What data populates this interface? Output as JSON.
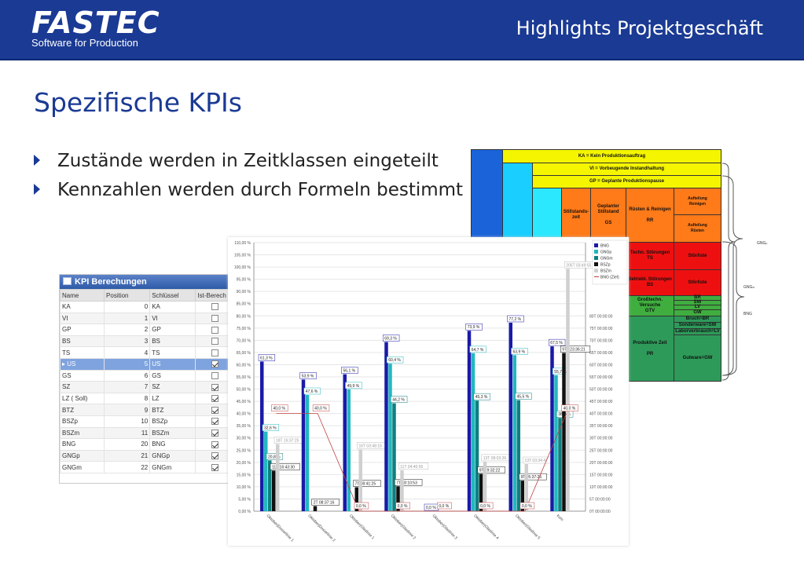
{
  "header": {
    "logo_main": "FASTEC",
    "logo_sub": "Software for Production",
    "title": "Highlights Projektgeschäft",
    "background": "#1a3a94"
  },
  "page_title": "Spezifische KPIs",
  "bullets": [
    "Zustände werden in Zeitklassen eingeteilt",
    "Kennzahlen werden durch Formeln bestimmt"
  ],
  "time_classes": {
    "ka": "KA = Kein Produktionsauftrag",
    "vi": "VI = Vorbeugende Instandhaltung",
    "gp": "GP = Geplante Produktionspause",
    "stillstandszeit": "Stillstands-\nzeit",
    "gs": "Geplanter\nStillstand\n\nGS",
    "rr": "Rüsten & Reinigen\n\nRR",
    "aufteilung1": "Aufteilung\nReinigen",
    "aufteilung2": "Aufteilung\nRüsten",
    "ts": "Techn. Störungen\nTS",
    "stoerliste1": "Störliste",
    "bs": "Betriebl. Störungen\nBS",
    "stoerliste2": "Störliste",
    "gtv": "Großtechn.\nVersuche\nGTV",
    "br": "BR",
    "sw": "SW",
    "lv": "LV",
    "gw": "GW",
    "pr": "Produktive Zeit\n\nPR",
    "bruch": "Bruch=BR",
    "sonderware": "Sonderware=SW",
    "laborverbrauch": "Laborverbrauch=LV",
    "gutware": "Gutware=GW",
    "brace1": "GNGₚ",
    "brace2": "GNGₘ",
    "brace3": "BNG"
  },
  "kpi_panel": {
    "title": "KPI Berechungen",
    "columns": [
      "Name",
      "Position",
      "Schlüssel",
      "Ist-Berech"
    ],
    "rows": [
      [
        "KA",
        "0",
        "KA",
        false
      ],
      [
        "VI",
        "1",
        "VI",
        false
      ],
      [
        "GP",
        "2",
        "GP",
        false
      ],
      [
        "BS",
        "3",
        "BS",
        false
      ],
      [
        "TS",
        "4",
        "TS",
        false
      ],
      [
        "US",
        "5",
        "US",
        true
      ],
      [
        "GS",
        "6",
        "GS",
        false
      ],
      [
        "SZ",
        "7",
        "SZ",
        true
      ],
      [
        "LZ ( Soll)",
        "8",
        "LZ",
        true
      ],
      [
        "BTZ",
        "9",
        "BTZ",
        true
      ],
      [
        "BSZp",
        "10",
        "BSZp",
        true
      ],
      [
        "BSZm",
        "11",
        "BSZm",
        true
      ],
      [
        "BNG",
        "20",
        "BNG",
        true
      ],
      [
        "GNGp",
        "21",
        "GNGp",
        true
      ],
      [
        "GNGm",
        "22",
        "GNGm",
        true
      ]
    ],
    "selected_row": 5
  },
  "chart_data": {
    "type": "bar",
    "categories": [
      "Oktober|Dosierlinie 1",
      "Oktober|Dosierlinie 2",
      "Oktober|Glaslinie 1",
      "Oktober|Glaslinie 2",
      "Oktober|Glaslinie 3",
      "Oktober|Glaslinie 4",
      "Oktober|Glaslinie 5",
      "kum"
    ],
    "y_ticks": [
      "0,00 %",
      "5,00 %",
      "10,00 %",
      "15,00 %",
      "20,00 %",
      "25,00 %",
      "30,00 %",
      "35,00 %",
      "40,00 %",
      "45,00 %",
      "50,00 %",
      "55,00 %",
      "60,00 %",
      "65,00 %",
      "70,00 %",
      "75,00 %",
      "80,00 %",
      "85,00 %",
      "90,00 %",
      "95,00 %",
      "100,00 %",
      "105,00 %",
      "110,00 %"
    ],
    "y2_ticks": [
      "0T 00:00:00",
      "5T 00:00:00",
      "10T 00:00:00",
      "15T 00:00:00",
      "20T 00:00:00",
      "25T 00:00:00",
      "30T 00:00:00",
      "35T 00:00:00",
      "40T 00:00:00",
      "45T 00:00:00",
      "50T 00:00:00",
      "55T 00:00:00",
      "60T 00:00:00",
      "65T 00:00:00",
      "70T 00:00:00",
      "75T 00:00:00",
      "80T 00:00:00"
    ],
    "ylim": [
      0,
      110
    ],
    "series": [
      {
        "name": "BNG",
        "color": "#1a1aa8",
        "values": [
          61.3,
          53.9,
          56.1,
          69.3,
          0,
          73.9,
          77.2,
          67.5
        ],
        "labels": [
          "61,3 %",
          "53,9 %",
          "56,1 %",
          "69,3 %",
          "0,0 %",
          "73,9 %",
          "77,2 %",
          "67,5 %"
        ]
      },
      {
        "name": "GNGp",
        "color": "#20b8c0",
        "values": [
          32.6,
          47.6,
          49.9,
          60.4,
          0,
          64.7,
          63.9,
          55.7
        ],
        "labels": [
          "32,6 %",
          "47,6 %",
          "49,9 %",
          "60,4 %",
          "",
          "64,7 %",
          "63,9 %",
          "55,7 %"
        ]
      },
      {
        "name": "GNGm",
        "color": "#0f7f7f",
        "values": [
          20.8,
          0,
          0,
          44.2,
          0,
          45.3,
          45.5,
          38.2
        ],
        "labels": [
          "20,8 %",
          "",
          "",
          "44,2 %",
          "",
          "45,3 %",
          "45,5 %",
          "38,2 %"
        ]
      },
      {
        "name": "BSZp",
        "color": "#111111",
        "values": [
          16.6,
          2.1,
          9.8,
          10.2,
          0,
          15.3,
          12.5,
          64.8
        ],
        "labels": [
          "11T 16:43:30",
          "2T 08:37:16",
          "7T 08:41:25",
          "7T 18:10:53",
          "",
          "9T 19:32:22",
          "9T 05:37:25",
          "97T 23:36:21"
        ]
      },
      {
        "name": "BSZm",
        "color": "#d0d0d0",
        "values": [
          27.5,
          0,
          25.3,
          16.8,
          0,
          20.3,
          19.3,
          99.3
        ],
        "labels": [
          "18T 16:37:25",
          "",
          "16T 03:48:15",
          "11T 04:40:55",
          "",
          "13T 08:03:26",
          "13T 03:34:47",
          "205T 03:49:55"
        ]
      }
    ],
    "line": {
      "name": "BNG (Ziel)",
      "color": "#c04040",
      "values": [
        40.0,
        40.0,
        0,
        0,
        0,
        0,
        0,
        40.0
      ],
      "labels": [
        "40,0 %",
        "40,0 %",
        "0,0 %",
        "0,0 %",
        "0,0 %",
        "0,0 %",
        "0,0 %",
        "40,0 %"
      ]
    }
  }
}
